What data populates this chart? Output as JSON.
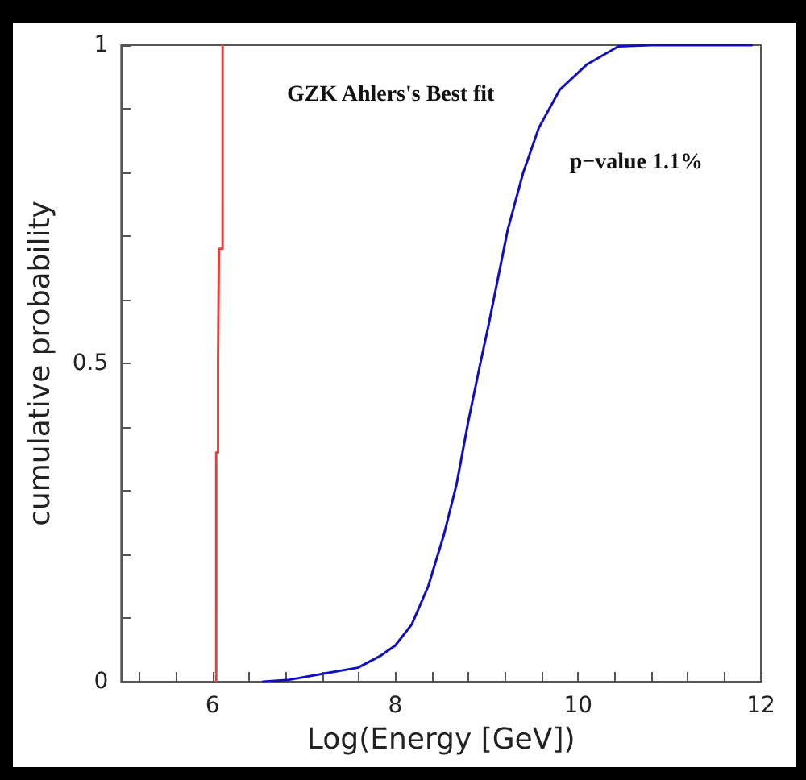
{
  "chart_data": {
    "type": "line",
    "xlabel": "Log(Energy [GeV])",
    "ylabel": "cumulative probability",
    "annotations": [
      "GZK Ahlers's Best fit",
      "p−value 1.1%"
    ],
    "series": [
      {
        "type": "step",
        "color": "#e8403a",
        "x": [
          6.04,
          6.04,
          6.06,
          6.07,
          6.11
        ],
        "values": [
          0,
          0.36,
          0.5,
          0.68,
          1
        ]
      },
      {
        "color": "#1010c0",
        "x": [
          6.55,
          6.84,
          7.19,
          7.59,
          7.83,
          8.0,
          8.18,
          8.36,
          8.53,
          8.67,
          8.8,
          8.93,
          9.02,
          9.23,
          9.4,
          9.57,
          9.8,
          10.1,
          10.44,
          10.8,
          11.9
        ],
        "values": [
          0,
          0.003,
          0.012,
          0.022,
          0.04,
          0.057,
          0.09,
          0.15,
          0.23,
          0.31,
          0.41,
          0.5,
          0.56,
          0.71,
          0.8,
          0.87,
          0.93,
          0.97,
          0.998,
          1.0,
          1.0
        ]
      }
    ],
    "xlim": [
      5,
      12
    ],
    "xticks": [
      {
        "value": 5.2,
        "label": null
      },
      {
        "value": 5.6,
        "label": null
      },
      6,
      {
        "value": 6.4,
        "label": null
      },
      {
        "value": 6.8,
        "label": null
      },
      {
        "value": 7.2,
        "label": null
      },
      {
        "value": 7.6,
        "label": null
      },
      8,
      {
        "value": 8.4,
        "label": null
      },
      {
        "value": 8.8,
        "label": null
      },
      {
        "value": 9.2,
        "label": null
      },
      {
        "value": 9.6,
        "label": null
      },
      10,
      {
        "value": 10.4,
        "label": null
      },
      {
        "value": 10.8,
        "label": null
      },
      {
        "value": 11.2,
        "label": null
      },
      {
        "value": 11.6,
        "label": null
      },
      12
    ],
    "ylim": [
      0,
      1
    ],
    "yticks": [
      0,
      {
        "value": 0.1,
        "label": null
      },
      {
        "value": 0.2,
        "label": null
      },
      {
        "value": 0.3,
        "label": null
      },
      {
        "value": 0.4,
        "label": null
      },
      0.5,
      {
        "value": 0.6,
        "label": null
      },
      {
        "value": 0.7,
        "label": null
      },
      {
        "value": 0.8,
        "label": null
      },
      {
        "value": 0.9,
        "label": null
      },
      1
    ],
    "grid": false,
    "marker": "none",
    "line_style": "solid"
  }
}
